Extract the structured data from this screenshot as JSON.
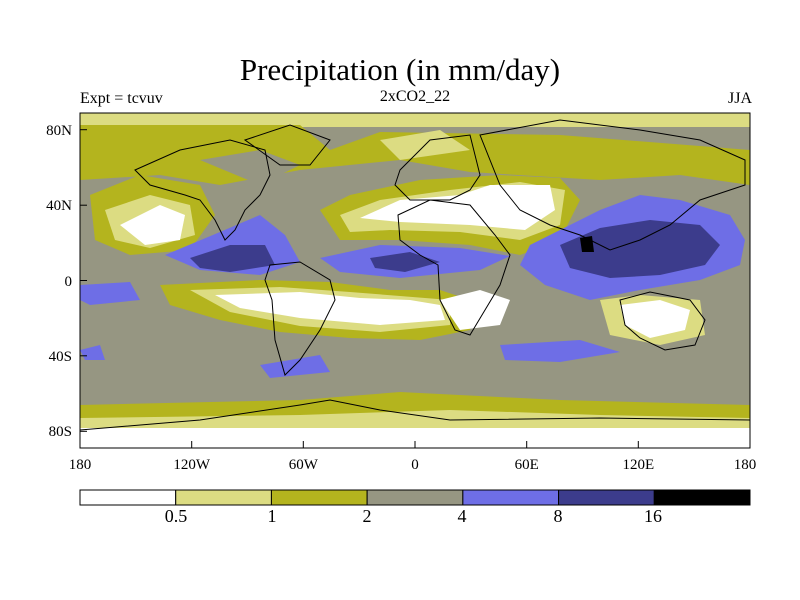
{
  "header": {
    "title": "Precipitation (in mm/day)",
    "left_label": "Expt = tcvuv",
    "center_label": "2xCO2_22",
    "right_label": "JJA"
  },
  "axes": {
    "x_ticks": [
      "180",
      "120W",
      "60W",
      "0",
      "60E",
      "120E",
      "180"
    ],
    "y_ticks": [
      "80N",
      "40N",
      "0",
      "40S",
      "80S"
    ]
  },
  "colorbar": {
    "levels": [
      "0.5",
      "1",
      "2",
      "4",
      "8",
      "16"
    ],
    "colors": [
      "#ffffff",
      "#dcdc82",
      "#b4b41e",
      "#969682",
      "#6e6ee6",
      "#3c3c8c",
      "#000000"
    ]
  },
  "chart_data": {
    "type": "heatmap",
    "title": "Precipitation (in mm/day)",
    "projection": "cylindrical equidistant",
    "lon_range": [
      -180,
      180
    ],
    "lat_range": [
      -90,
      90
    ],
    "contour_levels": [
      0.5,
      1,
      2,
      4,
      8,
      16
    ],
    "units": "mm/day"
  }
}
